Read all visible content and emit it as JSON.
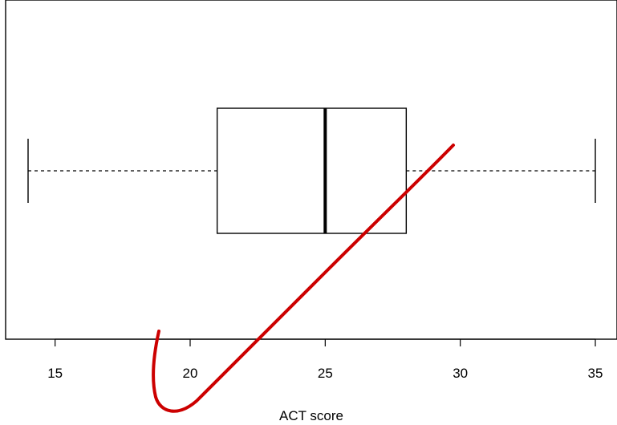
{
  "chart_data": {
    "type": "boxplot",
    "orientation": "horizontal",
    "xlabel": "ACT score",
    "xlim": [
      14,
      35
    ],
    "x_ticks": [
      15,
      20,
      25,
      30,
      35
    ],
    "x_tick_labels": [
      "15",
      "20",
      "25",
      "30",
      "35"
    ],
    "box": {
      "min": 14,
      "q1": 21,
      "median": 25,
      "q3": 28,
      "max": 35
    },
    "annotation": {
      "kind": "hand-drawn checkmark",
      "color": "#cc0000"
    }
  }
}
